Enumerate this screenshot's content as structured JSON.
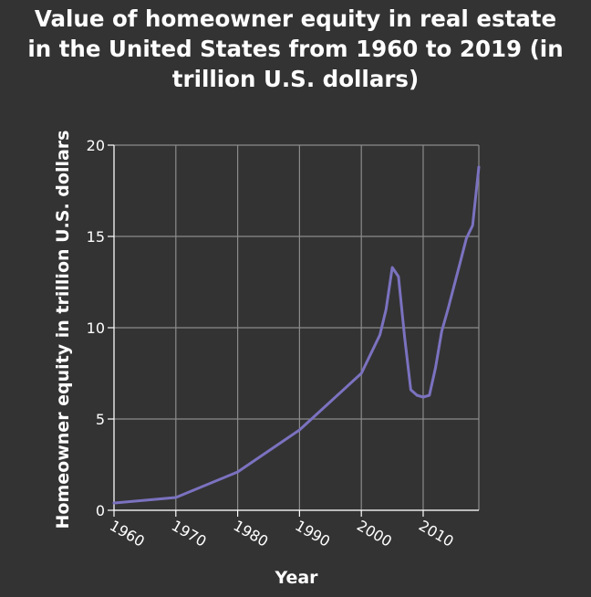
{
  "chart_data": {
    "type": "line",
    "title": "Value of homeowner equity in real estate in the United States from 1960 to 2019 (in trillion U.S. dollars)",
    "title_lines": [
      "Value of homeowner equity in real estate",
      "in the United States from 1960 to 2019 (in",
      "trillion U.S. dollars)"
    ],
    "xlabel": "Year",
    "ylabel": "Homeowner equity in trillion U.S. dollars",
    "xlim": [
      1960,
      2019
    ],
    "ylim": [
      0,
      20
    ],
    "x_ticks": [
      1960,
      1970,
      1980,
      1990,
      2000,
      2010
    ],
    "x_tick_labels": [
      "1960",
      "1970",
      "1980",
      "1990",
      "2000",
      "2010"
    ],
    "y_ticks": [
      0,
      5,
      10,
      15,
      20
    ],
    "y_tick_labels": [
      "0",
      "5",
      "10",
      "15",
      "20"
    ],
    "grid": true,
    "series": [
      {
        "color": "#7b72c0",
        "x": [
          1960,
          1970,
          1980,
          1990,
          2000,
          2003,
          2004,
          2005,
          2006,
          2007,
          2008,
          2009,
          2010,
          2011,
          2012,
          2013,
          2014,
          2015,
          2016,
          2017,
          2018,
          2019
        ],
        "y": [
          0.4,
          0.7,
          2.1,
          4.4,
          7.5,
          9.6,
          11.0,
          13.3,
          12.8,
          9.5,
          6.6,
          6.3,
          6.2,
          6.3,
          7.8,
          9.8,
          11.0,
          12.3,
          13.6,
          14.9,
          15.6,
          18.8
        ]
      }
    ],
    "colors": {
      "background": "#333333",
      "grid": "#8c8c8c",
      "line": "#7b72c0",
      "text": "#ffffff"
    }
  }
}
